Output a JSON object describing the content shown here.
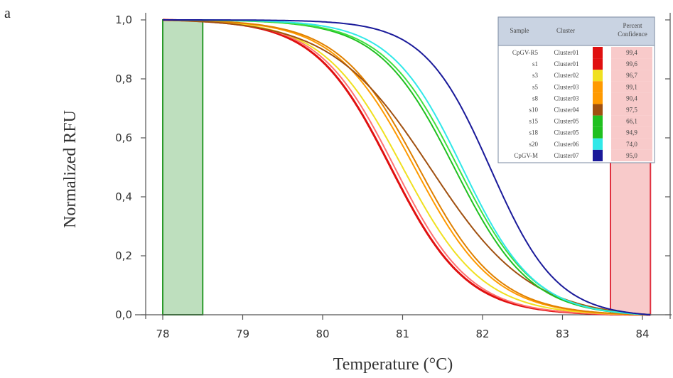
{
  "panel_label": "a",
  "chart_data": {
    "type": "line",
    "title": "",
    "xlabel": "Temperature (°C)",
    "ylabel": "Normalized RFU",
    "xlim": [
      78,
      84.2
    ],
    "ylim": [
      0,
      1.0
    ],
    "xticks": [
      "78",
      "79",
      "80",
      "81",
      "82",
      "83",
      "84"
    ],
    "yticks": [
      "0,0",
      "0,2",
      "0,4",
      "0,6",
      "0,8",
      "1,0"
    ],
    "shaded_regions": [
      {
        "x": [
          78.0,
          78.5
        ],
        "color": "#a8d4a8",
        "edge": "#2a9a2a"
      },
      {
        "x": [
          83.6,
          84.1
        ],
        "color": "#f6b8b8",
        "edge": "#e03040"
      }
    ],
    "series": [
      {
        "color": "#e01010",
        "x0": 80.85,
        "k": 2.1
      },
      {
        "color": "#ff7070",
        "x0": 80.9,
        "k": 2.1
      },
      {
        "color": "#f0e020",
        "x0": 81.0,
        "k": 2.0
      },
      {
        "color": "#ff9a00",
        "x0": 81.15,
        "k": 2.0
      },
      {
        "color": "#e08000",
        "x0": 81.2,
        "k": 2.0
      },
      {
        "color": "#a05010",
        "x0": 81.35,
        "k": 1.6
      },
      {
        "color": "#20c020",
        "x0": 81.65,
        "k": 2.1
      },
      {
        "color": "#40e040",
        "x0": 81.7,
        "k": 2.1
      },
      {
        "color": "#30e8e8",
        "x0": 81.75,
        "k": 2.2
      },
      {
        "color": "#1a1a9a",
        "x0": 82.1,
        "k": 2.4
      }
    ],
    "legend_table": {
      "headers": [
        "Sample",
        "Cluster",
        "",
        "Percent Confidence"
      ],
      "rows": [
        {
          "sample": "CpGV-R5",
          "cluster": "Cluster01",
          "color": "#e01010",
          "confidence": "99,4"
        },
        {
          "sample": "s1",
          "cluster": "Cluster01",
          "color": "#e01010",
          "confidence": "99,6"
        },
        {
          "sample": "s3",
          "cluster": "Cluster02",
          "color": "#f0e020",
          "confidence": "96,7"
        },
        {
          "sample": "s5",
          "cluster": "Cluster03",
          "color": "#ff9a00",
          "confidence": "99,1"
        },
        {
          "sample": "s8",
          "cluster": "Cluster03",
          "color": "#ff9a00",
          "confidence": "90,4"
        },
        {
          "sample": "s10",
          "cluster": "Cluster04",
          "color": "#a05010",
          "confidence": "97,5"
        },
        {
          "sample": "s15",
          "cluster": "Cluster05",
          "color": "#20c020",
          "confidence": "66,1"
        },
        {
          "sample": "s18",
          "cluster": "Cluster05",
          "color": "#20c020",
          "confidence": "94,9"
        },
        {
          "sample": "s20",
          "cluster": "Cluster06",
          "color": "#30e8e8",
          "confidence": "74,0"
        },
        {
          "sample": "CpGV-M",
          "cluster": "Cluster07",
          "color": "#1a1a9a",
          "confidence": "95,0"
        }
      ]
    }
  }
}
